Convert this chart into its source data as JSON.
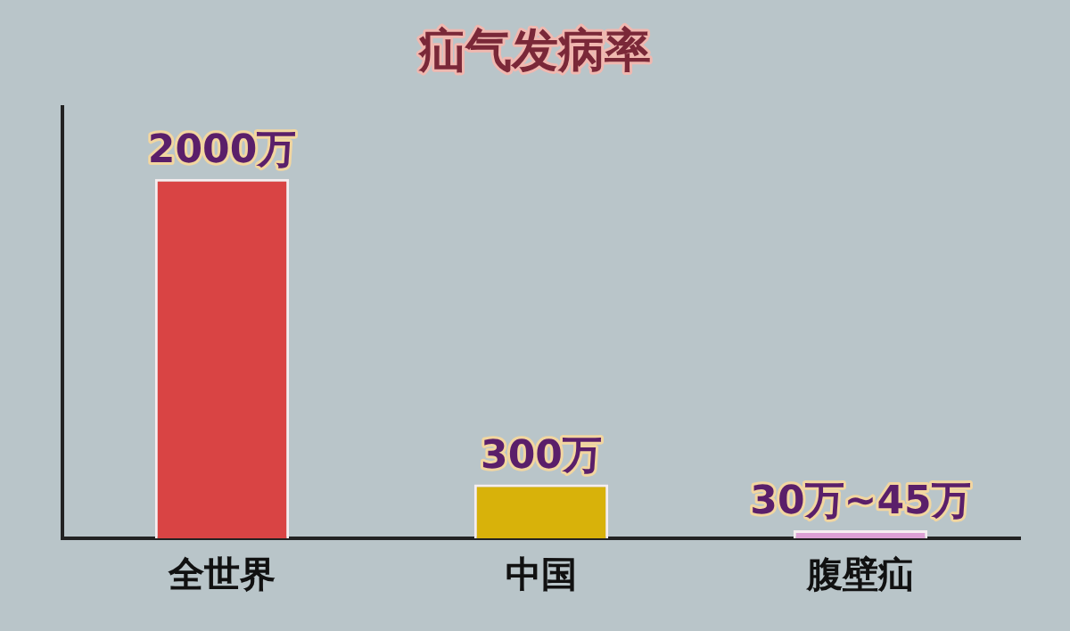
{
  "chart_data": {
    "type": "bar",
    "title": "疝气发病率",
    "categories": [
      "全世界",
      "中国",
      "腹壁疝"
    ],
    "values": [
      2000,
      300,
      45
    ],
    "ylim": [
      0,
      2400
    ],
    "colors": [
      "#d94444",
      "#d8b20a",
      "#dca0d4"
    ],
    "value_labels": [
      "2000万",
      "300万",
      "30万~45万"
    ],
    "grid": false,
    "legend": false
  }
}
